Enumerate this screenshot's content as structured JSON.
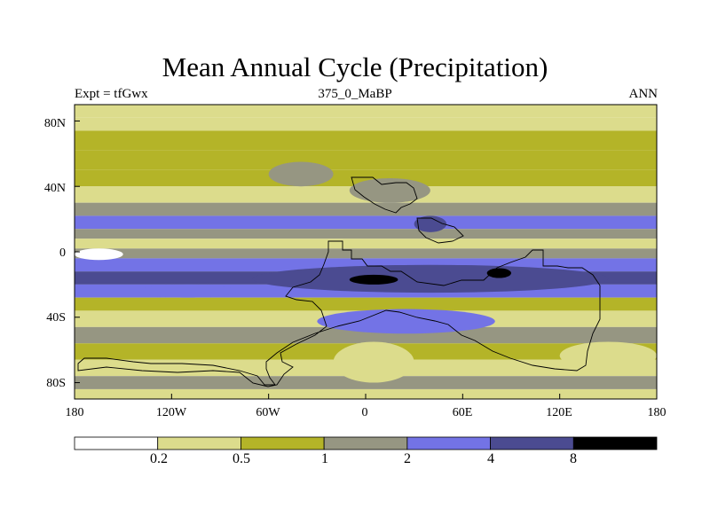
{
  "title": "Mean Annual Cycle (Precipitation)",
  "subtitle_left": "Expt = tfGwx",
  "subtitle_center": "375_0_MaBP",
  "subtitle_right": "ANN",
  "y_tick_labels": [
    "80N",
    "40N",
    "0",
    "40S",
    "80S"
  ],
  "x_tick_labels": [
    "180",
    "120W",
    "60W",
    "0",
    "60E",
    "120E",
    "180"
  ],
  "colorbar": {
    "colors": [
      "#ffffff",
      "#dcdc8c",
      "#b4b428",
      "#969682",
      "#7373e6",
      "#4b4b91",
      "#000000"
    ],
    "labels": [
      "0.2",
      "0.5",
      "1",
      "2",
      "4",
      "8"
    ]
  },
  "chart_data": {
    "type": "heatmap",
    "variable": "Precipitation",
    "period": "ANN",
    "experiment": "tfGwx",
    "age": "375_0_MaBP",
    "lon_range": [
      -180,
      180
    ],
    "lat_range": [
      -90,
      90
    ],
    "levels": [
      0.2,
      0.5,
      1,
      2,
      4,
      8
    ],
    "zonal_bands": [
      {
        "lat": [
          82,
          90
        ],
        "level_index": 1
      },
      {
        "lat": [
          74,
          82
        ],
        "level_index": 1
      },
      {
        "lat": [
          62,
          74
        ],
        "level_index": 2
      },
      {
        "lat": [
          50,
          62
        ],
        "level_index": 2
      },
      {
        "lat": [
          40,
          50
        ],
        "level_index": 2
      },
      {
        "lat": [
          30,
          40
        ],
        "level_index": 1
      },
      {
        "lat": [
          22,
          30
        ],
        "level_index": 3
      },
      {
        "lat": [
          14,
          22
        ],
        "level_index": 4
      },
      {
        "lat": [
          8,
          14
        ],
        "level_index": 3
      },
      {
        "lat": [
          2,
          8
        ],
        "level_index": 1
      },
      {
        "lat": [
          -4,
          2
        ],
        "level_index": 3
      },
      {
        "lat": [
          -12,
          -4
        ],
        "level_index": 4
      },
      {
        "lat": [
          -20,
          -12
        ],
        "level_index": 5
      },
      {
        "lat": [
          -28,
          -20
        ],
        "level_index": 4
      },
      {
        "lat": [
          -36,
          -28
        ],
        "level_index": 2
      },
      {
        "lat": [
          -46,
          -36
        ],
        "level_index": 1
      },
      {
        "lat": [
          -56,
          -46
        ],
        "level_index": 3
      },
      {
        "lat": [
          -66,
          -56
        ],
        "level_index": 2
      },
      {
        "lat": [
          -76,
          -66
        ],
        "level_index": 1
      },
      {
        "lat": [
          -84,
          -76
        ],
        "level_index": 3
      },
      {
        "lat": [
          -90,
          -84
        ],
        "level_index": 1
      }
    ],
    "patches": [
      {
        "lon": [
          -70,
          150
        ],
        "lat": [
          -25,
          -8
        ],
        "level_index": 5
      },
      {
        "lon": [
          -10,
          20
        ],
        "lat": [
          -20,
          -14
        ],
        "level_index": 6
      },
      {
        "lon": [
          75,
          90
        ],
        "lat": [
          -16,
          -10
        ],
        "level_index": 6
      },
      {
        "lon": [
          30,
          50
        ],
        "lat": [
          12,
          22
        ],
        "level_index": 5
      },
      {
        "lon": [
          -140,
          -80
        ],
        "lat": [
          -28,
          -20
        ],
        "level_index": 4
      },
      {
        "lon": [
          -30,
          80
        ],
        "lat": [
          -50,
          -35
        ],
        "level_index": 4
      },
      {
        "lon": [
          -20,
          30
        ],
        "lat": [
          -80,
          -55
        ],
        "level_index": 1
      },
      {
        "lon": [
          120,
          180
        ],
        "lat": [
          -72,
          -55
        ],
        "level_index": 1
      },
      {
        "lon": [
          -180,
          -150
        ],
        "lat": [
          -5,
          2
        ],
        "level_index": 0
      },
      {
        "lon": [
          -60,
          -20
        ],
        "lat": [
          40,
          55
        ],
        "level_index": 3
      },
      {
        "lon": [
          -10,
          40
        ],
        "lat": [
          30,
          45
        ],
        "level_index": 3
      }
    ]
  }
}
